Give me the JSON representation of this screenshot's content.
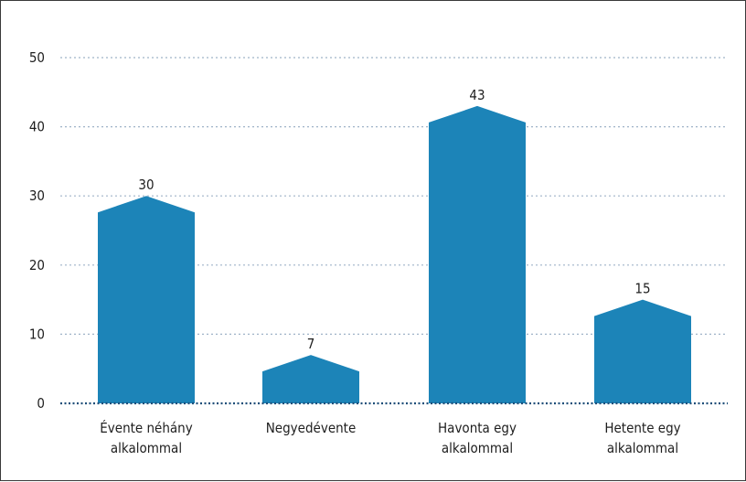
{
  "chart_data": {
    "type": "bar",
    "title": "",
    "xlabel": "",
    "ylabel": "",
    "categories": [
      [
        "Évente néhány",
        "alkalommal"
      ],
      [
        "Negyedévente"
      ],
      [
        "Havonta egy",
        "alkalommal"
      ],
      [
        "Hetente egy",
        "alkalommal"
      ]
    ],
    "values": [
      30,
      7,
      43,
      15
    ],
    "value_labels": [
      "30",
      "7",
      "43",
      "15"
    ],
    "ylim": [
      0,
      50
    ],
    "yticks": [
      0,
      10,
      20,
      30,
      40,
      50
    ],
    "ytick_labels": [
      "0",
      "10",
      "20",
      "30",
      "40",
      "50"
    ],
    "grid": true,
    "legend": "none",
    "colors": {
      "bar": "#1c84b8",
      "grid": "#9fb3c8",
      "baseline": "#1f4f7a",
      "text": "#1e1e1e"
    }
  }
}
